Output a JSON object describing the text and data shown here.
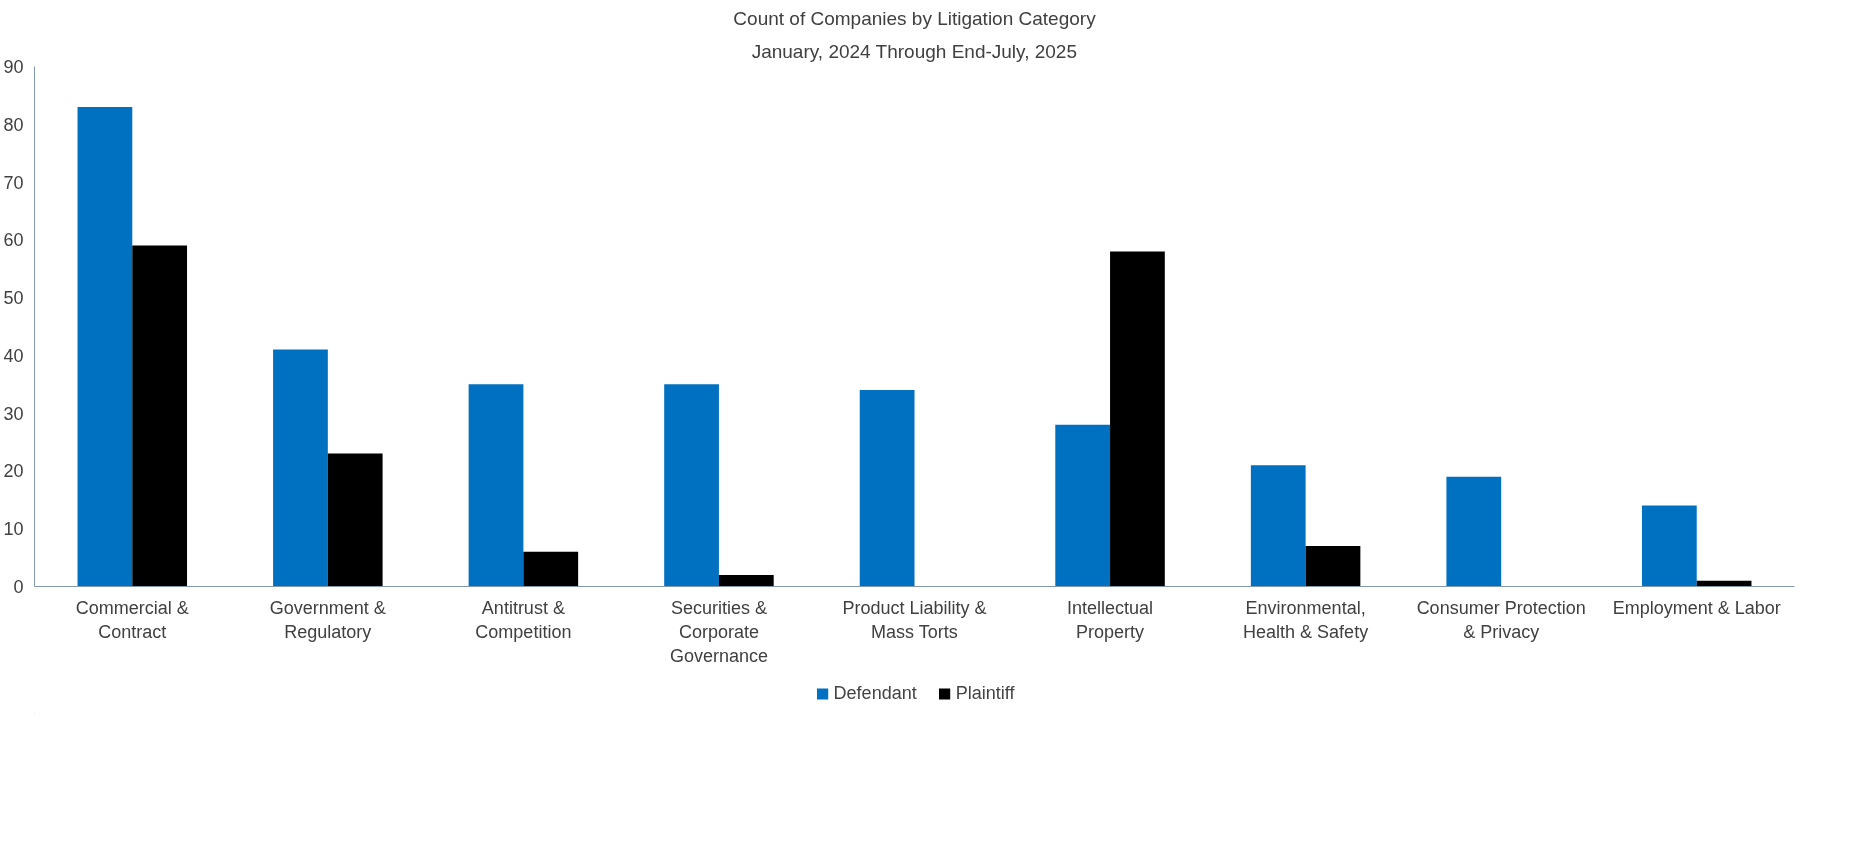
{
  "chart_data": {
    "type": "bar",
    "title": "Count of Companies by Litigation Category",
    "subtitle": "January, 2024 Through End-July, 2025",
    "categories": [
      "Commercial & Contract",
      "Government & Regulatory",
      "Antitrust & Competition",
      "Securities & Corporate Governance",
      "Product Liability & Mass Torts",
      "Intellectual Property",
      "Environmental, Health & Safety",
      "Consumer Protection & Privacy",
      "Employment & Labor"
    ],
    "series": [
      {
        "name": "Defendant",
        "color": "#0070c0",
        "values": [
          83,
          41,
          35,
          35,
          34,
          28,
          21,
          19,
          14
        ]
      },
      {
        "name": "Plaintiff",
        "color": "#000000",
        "values": [
          59,
          23,
          6,
          2,
          0,
          58,
          7,
          0,
          1
        ]
      }
    ],
    "ylim": [
      0,
      90
    ],
    "yticks": [
      0,
      10,
      20,
      30,
      40,
      50,
      60,
      70,
      80,
      90
    ],
    "grid": false,
    "legend": "bottom"
  }
}
